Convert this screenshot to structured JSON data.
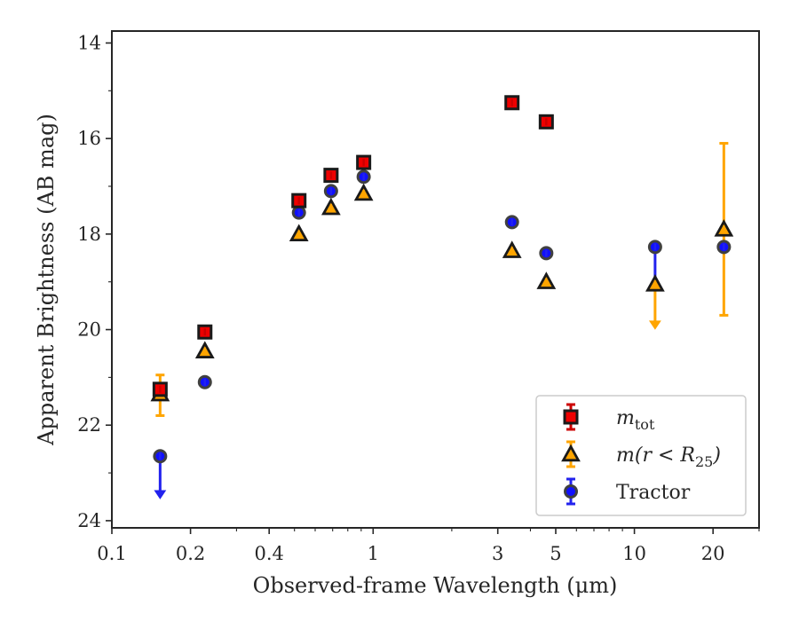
{
  "chart_data": {
    "type": "scatter",
    "title": "",
    "xlabel": "Observed-frame Wavelength (μm)",
    "ylabel": "Apparent Brightness (AB mag)",
    "xscale": "log",
    "xlim": [
      0.1,
      30
    ],
    "ylim": [
      24.15,
      13.75
    ],
    "y_inverted": true,
    "grid": false,
    "legend_position": "lower-right",
    "x_ticks": [
      {
        "value": 0.1,
        "label": "0.1"
      },
      {
        "value": 0.2,
        "label": "0.2"
      },
      {
        "value": 0.4,
        "label": "0.4"
      },
      {
        "value": 1,
        "label": "1"
      },
      {
        "value": 3,
        "label": "3"
      },
      {
        "value": 5,
        "label": "5"
      },
      {
        "value": 10,
        "label": "10"
      },
      {
        "value": 20,
        "label": "20"
      }
    ],
    "y_ticks": [
      {
        "value": 14,
        "label": "14"
      },
      {
        "value": 16,
        "label": "16"
      },
      {
        "value": 18,
        "label": "18"
      },
      {
        "value": 20,
        "label": "20"
      },
      {
        "value": 22,
        "label": "22"
      },
      {
        "value": 24,
        "label": "24"
      }
    ],
    "series": [
      {
        "name": "m_tot",
        "legend_label": {
          "main": "m",
          "sub": "tot"
        },
        "marker": "square",
        "color": "#ee0000",
        "edge_color": "#1a1a1a",
        "error_color": "#cc0000",
        "points": [
          {
            "x": 0.153,
            "y": 21.25
          },
          {
            "x": 0.227,
            "y": 20.05
          },
          {
            "x": 0.52,
            "y": 17.3
          },
          {
            "x": 0.69,
            "y": 16.77
          },
          {
            "x": 0.92,
            "y": 16.5
          },
          {
            "x": 3.4,
            "y": 15.25
          },
          {
            "x": 4.6,
            "y": 15.65
          }
        ]
      },
      {
        "name": "m(r<R25)",
        "legend_label": {
          "main": "m(r < R",
          "sub": "25",
          "close": ")"
        },
        "marker": "triangle",
        "color": "#ffa500",
        "edge_color": "#1a1a1a",
        "error_color": "#ffa500",
        "points": [
          {
            "x": 0.153,
            "y": 21.35,
            "err_low": 0.45,
            "err_high": 0.4
          },
          {
            "x": 0.227,
            "y": 20.45
          },
          {
            "x": 0.52,
            "y": 18.0
          },
          {
            "x": 0.69,
            "y": 17.45
          },
          {
            "x": 0.92,
            "y": 17.15
          },
          {
            "x": 3.4,
            "y": 18.35
          },
          {
            "x": 4.6,
            "y": 19.0
          },
          {
            "x": 12.0,
            "y": 19.05,
            "upper_limit_to": 19.95
          },
          {
            "x": 22.0,
            "y": 17.9,
            "err_low": 1.8,
            "err_high": 1.8
          }
        ]
      },
      {
        "name": "Tractor",
        "legend_label": {
          "main": "Tractor"
        },
        "marker": "circle",
        "color": "#1010ff",
        "edge_color": "#404040",
        "error_color": "#2222ee",
        "points": [
          {
            "x": 0.153,
            "y": 22.65,
            "upper_limit_to": 23.5
          },
          {
            "x": 0.227,
            "y": 21.1
          },
          {
            "x": 0.52,
            "y": 17.55
          },
          {
            "x": 0.69,
            "y": 17.1
          },
          {
            "x": 0.92,
            "y": 16.8
          },
          {
            "x": 3.4,
            "y": 17.75
          },
          {
            "x": 4.6,
            "y": 18.4
          },
          {
            "x": 12.0,
            "y": 18.27,
            "err_low": 0.75
          },
          {
            "x": 22.0,
            "y": 18.27
          }
        ]
      }
    ]
  }
}
